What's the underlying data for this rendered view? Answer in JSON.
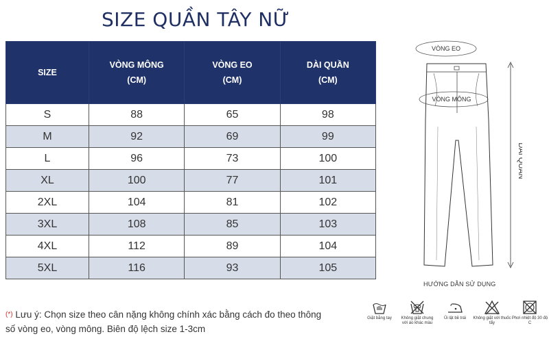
{
  "title": "SIZE QUẦN TÂY NỮ",
  "table": {
    "headers": [
      "SIZE",
      "VÒNG MÔNG\n(CM)",
      "VÒNG EO\n(CM)",
      "DÀI QUẦN\n(CM)"
    ],
    "rows": [
      [
        "S",
        "88",
        "65",
        "98"
      ],
      [
        "M",
        "92",
        "69",
        "99"
      ],
      [
        "L",
        "96",
        "73",
        "100"
      ],
      [
        "XL",
        "100",
        "77",
        "101"
      ],
      [
        "2XL",
        "104",
        "81",
        "102"
      ],
      [
        "3XL",
        "108",
        "85",
        "103"
      ],
      [
        "4XL",
        "112",
        "89",
        "104"
      ],
      [
        "5XL",
        "116",
        "93",
        "105"
      ]
    ]
  },
  "note": {
    "asterisk": "(*)",
    "text": "Lưu ý: Chọn size theo cân nặng không chính xác bằng cách đo theo thông số vòng eo, vòng mông. Biên độ lệch size 1-3cm"
  },
  "diagram": {
    "waist_label": "VÒNG EO",
    "hip_label": "VÒNG MÔNG",
    "length_label": "DÀI QUẦN"
  },
  "usage_title": "HƯỚNG DẪN SỬ DỤNG",
  "care": [
    {
      "icon": "hand-wash-icon",
      "label": "Giặt bằng tay"
    },
    {
      "icon": "no-wash-together-icon",
      "label": "Không giặt chung với áo khác màu"
    },
    {
      "icon": "iron-reverse-icon",
      "label": "Ủi lật bề trái"
    },
    {
      "icon": "no-bleach-icon",
      "label": "Không giặt với thuốc tẩy"
    },
    {
      "icon": "no-tumble-dry-icon",
      "label": "Phơi nhiệt độ 30 độ C"
    }
  ],
  "colors": {
    "header_bg": "#1f336a",
    "alt_row": "#d6dce8",
    "title": "#1f2f63"
  }
}
